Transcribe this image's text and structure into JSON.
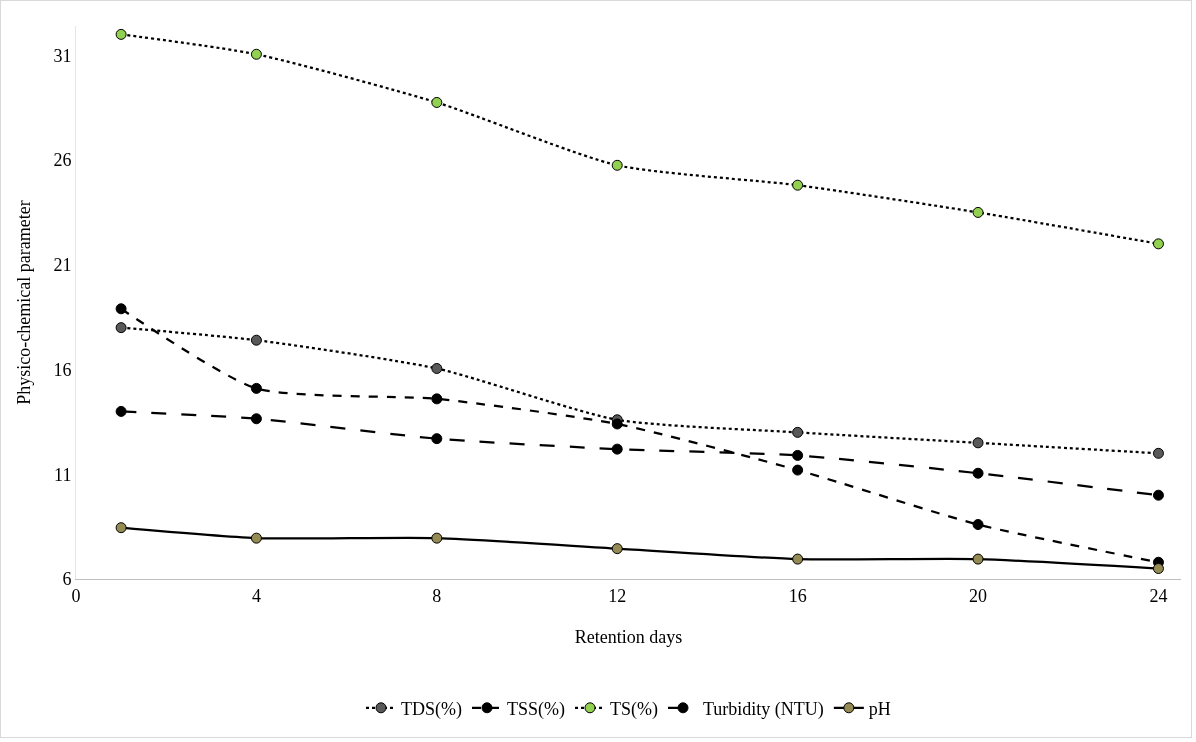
{
  "chart_data": {
    "type": "line",
    "xlabel": "Retention days",
    "ylabel": "Physico-chemical parameter",
    "x": [
      1,
      4,
      8,
      12,
      16,
      20,
      24
    ],
    "xlim": [
      0,
      24.5
    ],
    "xticks": [
      0,
      4,
      8,
      12,
      16,
      20,
      24
    ],
    "ylim": [
      6,
      32.4
    ],
    "yticks": [
      6,
      11,
      16,
      21,
      26,
      31
    ],
    "grid": false,
    "legend": "bottom",
    "marker": "circle",
    "series": [
      {
        "name": "TDS(%)",
        "color": "#595959",
        "line_style": "dotted",
        "values": [
          18.0,
          17.4,
          16.05,
          13.6,
          13.0,
          12.5,
          12.0
        ]
      },
      {
        "name": "TSS(%)",
        "color": "#000000",
        "line_style": "dashed",
        "values": [
          18.9,
          15.1,
          14.6,
          13.4,
          11.2,
          8.6,
          6.8
        ]
      },
      {
        "name": "TS(%)",
        "color": "#92d050",
        "line_style": "dotted",
        "values": [
          32.0,
          31.05,
          28.75,
          25.75,
          24.8,
          23.5,
          22.0
        ]
      },
      {
        "name": "Turbidity (NTU)",
        "color": "#000000",
        "line_style": "longdash",
        "values": [
          14.0,
          13.65,
          12.7,
          12.2,
          11.9,
          11.05,
          10.0
        ]
      },
      {
        "name": "pH",
        "color": "#948a54",
        "line_style": "solid",
        "values": [
          8.45,
          7.95,
          7.95,
          7.45,
          6.95,
          6.95,
          6.5
        ]
      }
    ]
  }
}
